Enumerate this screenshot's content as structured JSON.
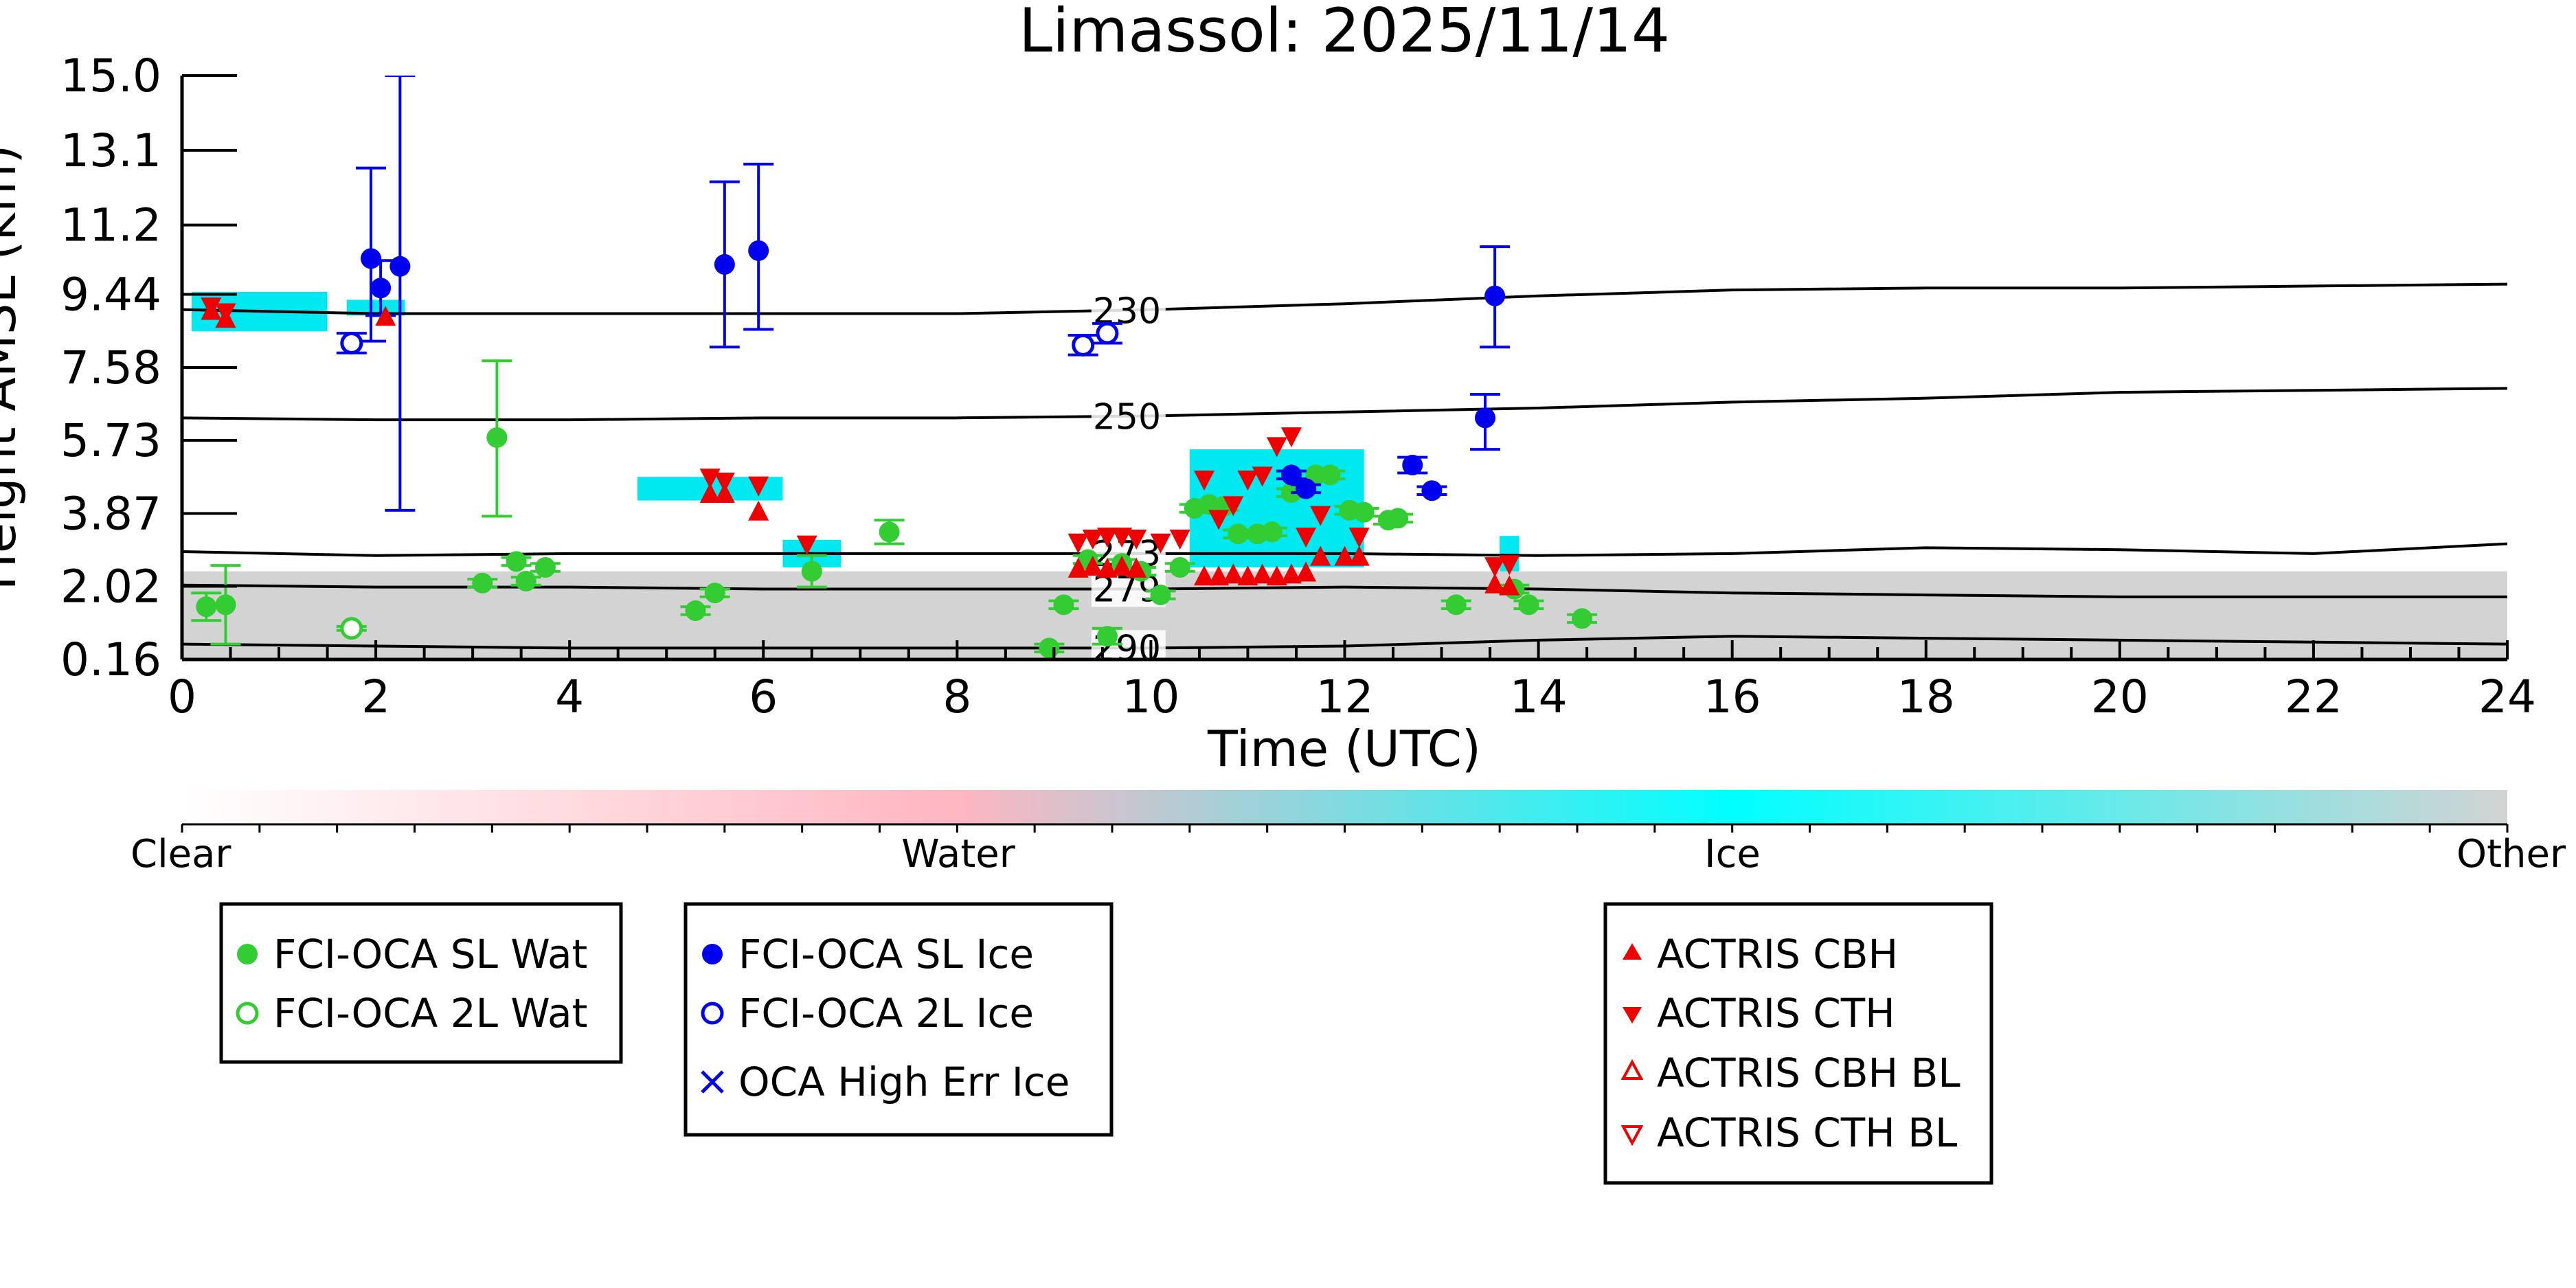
{
  "chart_data": {
    "type": "scatter",
    "title": "Limassol: 2025/11/14",
    "xlabel": "Time (UTC)",
    "ylabel": "Height AMSL (km)",
    "xlim": [
      0,
      24
    ],
    "ylim": [
      0.16,
      15.0
    ],
    "x_ticks": [
      0,
      2,
      4,
      6,
      8,
      10,
      12,
      14,
      16,
      18,
      20,
      22,
      24
    ],
    "y_ticks": [
      "0.16",
      "2.02",
      "3.87",
      "5.73",
      "7.58",
      "9.44",
      "11.2",
      "13.1",
      "15.0"
    ],
    "grid": false,
    "colorbar": {
      "labels": [
        "Clear",
        "Water",
        "Ice",
        "Other"
      ],
      "colors": [
        "#ffffff",
        "#ffb6c1",
        "#00ffff",
        "#d3d3d3"
      ]
    },
    "colors": {
      "sl_water": "#33cc33",
      "sl_ice": "#0000ee",
      "actris": "#ee0000",
      "contour": "#000000",
      "ice_cloud": "#00e8f0",
      "other_cloud": "#d3d3d3",
      "water_cloud": "#ffb6c1"
    },
    "temperature_contours": [
      {
        "label": "230",
        "x": [
          0,
          2,
          4,
          6,
          8,
          10,
          12,
          14,
          16,
          18,
          20,
          22,
          24
        ],
        "y": [
          9.05,
          8.95,
          8.95,
          8.95,
          8.95,
          9.05,
          9.2,
          9.4,
          9.55,
          9.6,
          9.6,
          9.65,
          9.7
        ]
      },
      {
        "label": "250",
        "x": [
          0,
          2,
          4,
          6,
          8,
          10,
          12,
          14,
          16,
          18,
          20,
          22,
          24
        ],
        "y": [
          6.3,
          6.25,
          6.25,
          6.3,
          6.3,
          6.35,
          6.45,
          6.55,
          6.7,
          6.8,
          6.95,
          7.0,
          7.05
        ]
      },
      {
        "label": "273",
        "x": [
          0,
          2,
          4,
          6,
          8,
          10,
          12,
          14,
          16,
          18,
          20,
          22,
          24
        ],
        "y": [
          2.9,
          2.8,
          2.85,
          2.85,
          2.85,
          2.85,
          2.85,
          2.8,
          2.85,
          3.0,
          2.95,
          2.85,
          3.1
        ]
      },
      {
        "label": "279",
        "x": [
          0,
          2,
          4,
          6,
          8,
          10,
          12,
          14,
          16,
          18,
          20,
          22,
          24
        ],
        "y": [
          2.05,
          2.0,
          2.0,
          1.95,
          1.95,
          1.95,
          2.0,
          1.95,
          1.85,
          1.8,
          1.75,
          1.75,
          1.75
        ]
      },
      {
        "label": "290",
        "x": [
          0,
          2,
          4,
          6,
          8,
          10,
          12,
          14,
          16,
          18,
          20,
          22,
          24
        ],
        "y": [
          0.55,
          0.5,
          0.45,
          0.45,
          0.45,
          0.45,
          0.5,
          0.65,
          0.75,
          0.7,
          0.65,
          0.6,
          0.55
        ]
      }
    ],
    "cloudnet_regions": [
      {
        "class": "Other",
        "x": [
          0,
          24
        ],
        "y": [
          0.16,
          2.4
        ]
      },
      {
        "class": "Ice",
        "x": [
          0.1,
          1.5
        ],
        "y": [
          8.5,
          9.5
        ]
      },
      {
        "class": "Ice",
        "x": [
          1.7,
          2.3
        ],
        "y": [
          8.9,
          9.3
        ]
      },
      {
        "class": "Ice",
        "x": [
          4.7,
          6.2
        ],
        "y": [
          4.2,
          4.8
        ]
      },
      {
        "class": "Ice",
        "x": [
          6.2,
          6.8
        ],
        "y": [
          2.5,
          3.2
        ]
      },
      {
        "class": "Ice",
        "x": [
          10.4,
          12.2
        ],
        "y": [
          2.5,
          5.5
        ]
      },
      {
        "class": "Ice",
        "x": [
          13.6,
          13.8
        ],
        "y": [
          2.4,
          3.3
        ]
      }
    ],
    "series": [
      {
        "name": "FCI-OCA SL Wat",
        "marker": "filled-circle",
        "x": [
          0.25,
          0.45,
          3.1,
          3.25,
          3.45,
          3.55,
          3.75,
          5.3,
          5.5,
          6.5,
          7.3,
          8.95,
          9.1,
          9.35,
          9.55,
          9.7,
          9.9,
          10.1,
          10.3,
          10.45,
          10.6,
          10.75,
          10.9,
          11.1,
          11.25,
          11.45,
          11.7,
          11.85,
          12.05,
          12.2,
          12.45,
          12.55,
          13.15,
          13.75,
          13.9,
          14.45
        ],
        "y": [
          1.5,
          1.55,
          2.1,
          5.8,
          2.65,
          2.15,
          2.5,
          1.4,
          1.85,
          2.4,
          3.4,
          0.45,
          1.55,
          2.7,
          0.75,
          2.6,
          2.4,
          1.8,
          2.5,
          4.0,
          4.1,
          4.05,
          3.35,
          3.35,
          3.4,
          4.4,
          4.85,
          4.85,
          3.95,
          3.9,
          3.7,
          3.75,
          1.55,
          1.95,
          1.55,
          1.2
        ],
        "yerr_low": [
          0.35,
          1.0,
          0.1,
          2.0,
          0.1,
          0.1,
          0.1,
          0.1,
          0.1,
          0.4,
          0.3,
          0.1,
          0.1,
          0.1,
          0.2,
          0.1,
          0.1,
          0.1,
          0.1,
          0.1,
          0.1,
          0.1,
          0.1,
          0.1,
          0.1,
          0.1,
          0.1,
          0.1,
          0.1,
          0.1,
          0.1,
          0.1,
          0.1,
          0.1,
          0.1,
          0.1
        ],
        "yerr_high": [
          0.35,
          1.0,
          0.1,
          1.95,
          0.1,
          0.1,
          0.1,
          0.1,
          0.1,
          0.4,
          0.3,
          0.1,
          0.1,
          0.1,
          0.2,
          0.1,
          0.1,
          0.1,
          0.1,
          0.1,
          0.1,
          0.1,
          0.1,
          0.1,
          0.1,
          0.1,
          0.1,
          0.1,
          0.1,
          0.1,
          0.1,
          0.1,
          0.1,
          0.1,
          0.1,
          0.1
        ]
      },
      {
        "name": "FCI-OCA 2L Wat",
        "marker": "open-circle",
        "x": [
          1.75
        ],
        "y": [
          0.95
        ],
        "yerr_low": [
          0.05
        ],
        "yerr_high": [
          0.05
        ]
      },
      {
        "name": "FCI-OCA SL Ice",
        "marker": "filled-circle",
        "x": [
          1.95,
          2.05,
          2.25,
          5.6,
          5.95,
          11.45,
          11.6,
          12.7,
          12.9,
          13.45,
          13.55
        ],
        "y": [
          10.35,
          9.6,
          10.15,
          10.2,
          10.55,
          4.85,
          4.5,
          5.1,
          4.45,
          6.3,
          9.4
        ],
        "yerr_low": [
          2.1,
          0.7,
          6.2,
          2.1,
          2.0,
          0.1,
          0.1,
          0.2,
          0.1,
          0.8,
          1.3
        ],
        "yerr_high": [
          2.3,
          0.7,
          4.85,
          2.1,
          2.2,
          0.1,
          0.1,
          0.2,
          0.1,
          0.6,
          1.25
        ]
      },
      {
        "name": "FCI-OCA 2L Ice",
        "marker": "open-circle",
        "x": [
          1.75,
          9.3,
          9.55
        ],
        "y": [
          8.2,
          8.15,
          8.45
        ],
        "yerr_low": [
          0.25,
          0.25,
          0.25
        ],
        "yerr_high": [
          0.25,
          0.25,
          0.25
        ]
      },
      {
        "name": "OCA High Err Ice",
        "marker": "x",
        "x": [],
        "y": []
      },
      {
        "name": "ACTRIS CBH",
        "marker": "triangle-up",
        "x": [
          0.3,
          0.45,
          2.1,
          5.45,
          5.6,
          5.95,
          9.25,
          9.4,
          9.55,
          9.7,
          9.85,
          10.55,
          10.7,
          10.85,
          11.0,
          11.15,
          11.3,
          11.45,
          11.6,
          11.75,
          12.0,
          12.15,
          13.55,
          13.7
        ],
        "y": [
          9.0,
          8.8,
          8.85,
          4.35,
          4.35,
          3.9,
          2.45,
          2.5,
          2.45,
          2.5,
          2.45,
          2.25,
          2.25,
          2.3,
          2.25,
          2.3,
          2.25,
          2.3,
          2.35,
          2.75,
          2.75,
          2.75,
          2.05,
          2.0
        ]
      },
      {
        "name": "ACTRIS CTH",
        "marker": "triangle-down",
        "x": [
          0.3,
          0.45,
          5.45,
          5.6,
          5.95,
          6.45,
          9.25,
          9.4,
          9.55,
          9.7,
          9.85,
          10.1,
          10.3,
          10.55,
          10.7,
          10.85,
          11.0,
          11.15,
          11.3,
          11.45,
          11.6,
          11.75,
          12.15,
          13.55,
          13.7
        ],
        "y": [
          9.15,
          9.0,
          4.8,
          4.7,
          4.6,
          3.1,
          3.15,
          3.25,
          3.3,
          3.3,
          3.25,
          3.15,
          3.25,
          4.75,
          3.75,
          4.1,
          4.75,
          4.85,
          5.6,
          5.85,
          3.3,
          3.85,
          3.3,
          2.55,
          2.6
        ]
      },
      {
        "name": "ACTRIS CBH BL",
        "marker": "open-triangle-up",
        "x": [],
        "y": []
      },
      {
        "name": "ACTRIS CTH BL",
        "marker": "open-triangle-down",
        "x": [],
        "y": []
      }
    ]
  },
  "legends": {
    "water": [
      {
        "label": "FCI-OCA SL Wat",
        "icon": "filled-circle-icon"
      },
      {
        "label": "FCI-OCA 2L Wat",
        "icon": "open-circle-icon"
      }
    ],
    "ice": [
      {
        "label": "FCI-OCA SL Ice",
        "icon": "filled-circle-icon"
      },
      {
        "label": "FCI-OCA 2L Ice",
        "icon": "open-circle-icon"
      },
      {
        "label": "OCA High Err Ice",
        "icon": "x-icon"
      }
    ],
    "actris": [
      {
        "label": "ACTRIS CBH",
        "icon": "triangle-up-icon"
      },
      {
        "label": "ACTRIS CTH",
        "icon": "triangle-down-icon"
      },
      {
        "label": "ACTRIS CBH BL",
        "icon": "open-triangle-up-icon"
      },
      {
        "label": "ACTRIS CTH BL",
        "icon": "open-triangle-down-icon"
      }
    ]
  }
}
